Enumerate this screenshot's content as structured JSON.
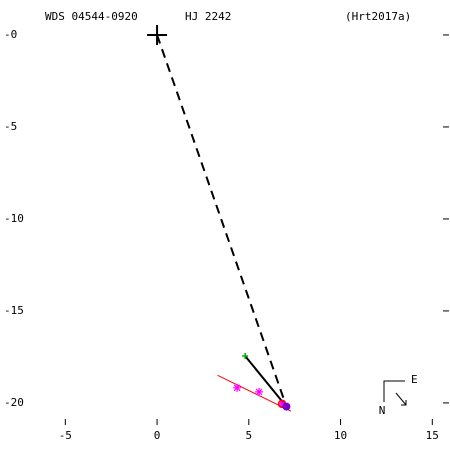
{
  "chart_data": {
    "type": "scatter",
    "wds_id": "WDS 04544-0920",
    "name": "HJ 2242",
    "reference": "(Hrt2017a)",
    "xlim": [
      -8.56,
      15.91
    ],
    "ylim": [
      -21.2,
      1.9
    ],
    "xticks": [
      -5,
      0,
      5,
      10,
      15
    ],
    "yticks": [
      {
        "value": 0,
        "label": "-0"
      },
      -5,
      -10,
      -15,
      -20
    ],
    "primary": {
      "x": 0,
      "y": 0,
      "color": "#000000"
    },
    "first": {
      "x": 4.8,
      "y": -17.45,
      "color": "#00aa00"
    },
    "measures": {
      "x": [
        4.36,
        5.56,
        6.81
      ],
      "y": [
        -19.18,
        -19.4,
        -20.05
      ],
      "color": "#ff00ff"
    },
    "circled": {
      "x": 6.81,
      "y": -20.05,
      "color": "#ff0000"
    },
    "last": {
      "x": 7.05,
      "y": -20.2,
      "color": "#7700cc"
    },
    "fit_line": {
      "x": [
        3.3,
        7.3
      ],
      "y": [
        -18.5,
        -20.45
      ],
      "color": "#ff0000"
    },
    "compass": {
      "east": "E",
      "north": "N"
    }
  }
}
